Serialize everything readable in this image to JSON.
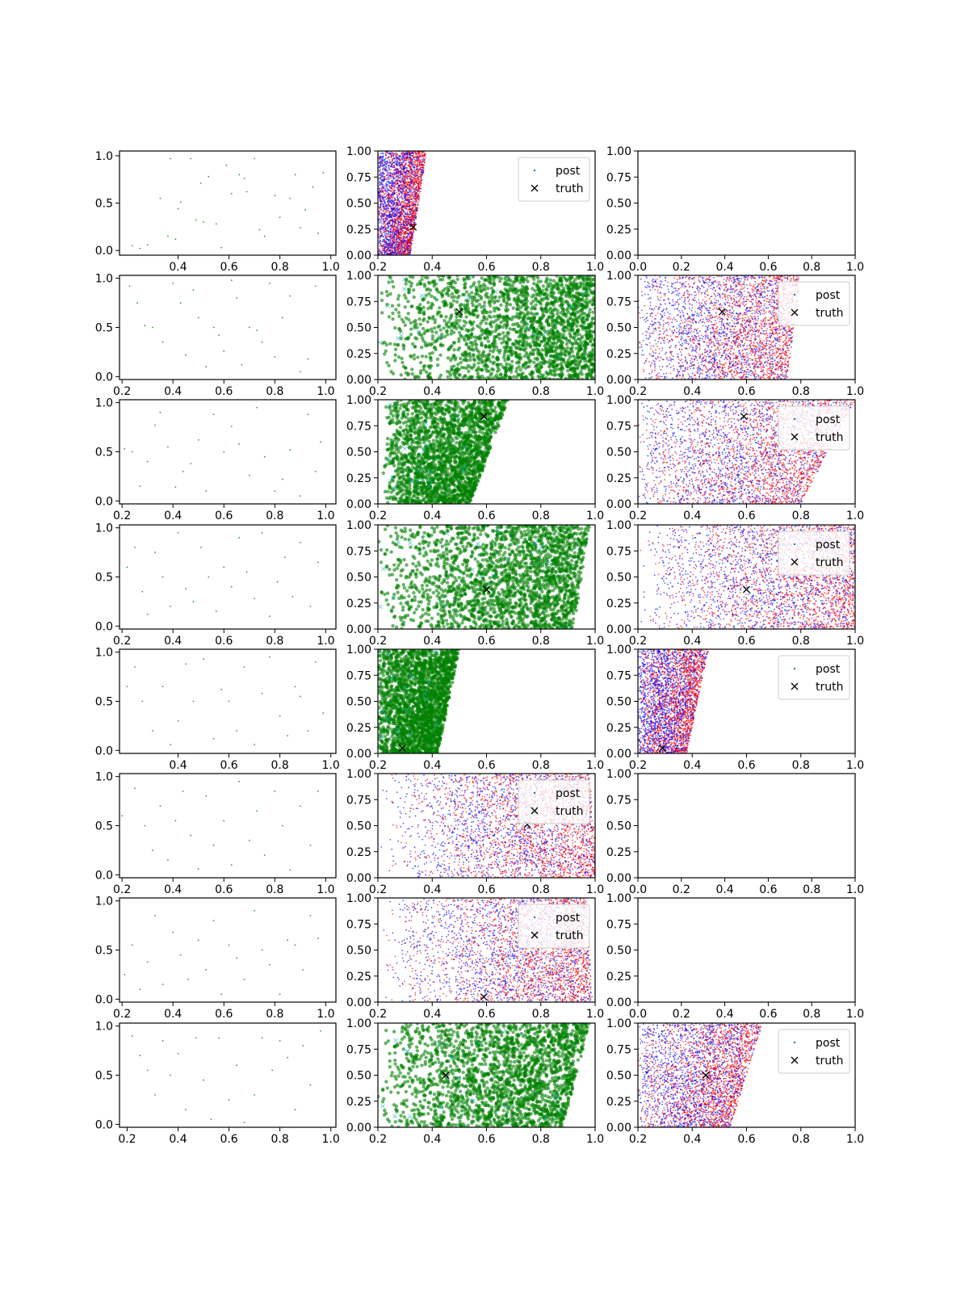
{
  "figure": {
    "layout": "8 rows x 3 columns of scatter subplots",
    "colors": {
      "prior": "#2ca02c",
      "samples": "#008000",
      "post_a": "#ff0000",
      "post_b": "#0000ff",
      "truth": "#000000",
      "post_legend": "#1f77b4"
    },
    "legend_labels": {
      "post": "post",
      "truth": "truth"
    }
  },
  "chart_data": [
    {
      "row": 1,
      "col": 1,
      "type": "scatter",
      "kind": "prior",
      "xlim": [
        0.17,
        1.02
      ],
      "ylim": [
        -0.05,
        1.05
      ],
      "xticks": [
        "0.4",
        "0.6",
        "0.8",
        "1.0"
      ],
      "yticks": [
        "0.0",
        "0.5",
        "1.0"
      ],
      "legend": false,
      "x": [
        0.22,
        0.25,
        0.28,
        0.33,
        0.36,
        0.37,
        0.39,
        0.4,
        0.41,
        0.45,
        0.47,
        0.49,
        0.5,
        0.52,
        0.55,
        0.57,
        0.59,
        0.61,
        0.64,
        0.66,
        0.67,
        0.7,
        0.72,
        0.74,
        0.78,
        0.8,
        0.84,
        0.86,
        0.88,
        0.9,
        0.93,
        0.95,
        0.97
      ],
      "y": [
        0.05,
        0.02,
        0.06,
        0.55,
        0.15,
        0.97,
        0.12,
        0.44,
        0.51,
        0.97,
        0.32,
        0.71,
        0.3,
        0.78,
        0.28,
        0.03,
        0.9,
        0.6,
        0.8,
        0.76,
        0.62,
        0.97,
        0.22,
        0.15,
        0.58,
        0.35,
        0.55,
        0.8,
        0.24,
        0.43,
        0.67,
        0.18,
        0.82
      ]
    },
    {
      "row": 1,
      "col": 2,
      "type": "scatter",
      "kind": "posterior",
      "xlim": [
        0.2,
        1.0
      ],
      "ylim": [
        0.0,
        1.0
      ],
      "xticks": [
        "0.2",
        "0.4",
        "0.6",
        "0.8",
        "1.0"
      ],
      "yticks": [
        "0.00",
        "0.25",
        "0.50",
        "0.75",
        "1.00"
      ],
      "legend": true,
      "truth": [
        0.33,
        0.27
      ],
      "region": {
        "x0": 0.2,
        "w0": 0.12,
        "w1": 0.18,
        "bias": 0.35
      }
    },
    {
      "row": 1,
      "col": 3,
      "type": "scatter",
      "kind": "empty",
      "xlim": [
        0.0,
        1.0
      ],
      "ylim": [
        0.0,
        1.0
      ],
      "xticks": [
        "0.0",
        "0.2",
        "0.4",
        "0.6",
        "0.8",
        "1.0"
      ],
      "yticks": [
        "0.00",
        "0.25",
        "0.50",
        "0.75",
        "1.00"
      ],
      "legend": false
    },
    {
      "row": 2,
      "col": 1,
      "type": "scatter",
      "kind": "prior",
      "xlim": [
        0.19,
        1.04
      ],
      "ylim": [
        -0.03,
        1.03
      ],
      "xticks": [
        "0.2",
        "0.4",
        "0.6",
        "0.8",
        "1.0"
      ],
      "yticks": [
        "0.0",
        "0.5",
        "1.0"
      ],
      "legend": false,
      "x": [
        0.23,
        0.26,
        0.29,
        0.32,
        0.36,
        0.4,
        0.43,
        0.45,
        0.48,
        0.5,
        0.53,
        0.56,
        0.58,
        0.6,
        0.63,
        0.65,
        0.67,
        0.7,
        0.73,
        0.75,
        0.78,
        0.8,
        0.83,
        0.86,
        0.9,
        0.93,
        0.96
      ],
      "y": [
        0.92,
        0.75,
        0.52,
        0.5,
        0.35,
        0.95,
        0.75,
        0.22,
        0.88,
        0.6,
        0.1,
        0.5,
        0.42,
        0.26,
        0.98,
        0.8,
        0.12,
        0.5,
        0.47,
        0.35,
        0.95,
        0.2,
        0.6,
        0.82,
        0.05,
        0.18,
        0.92
      ]
    },
    {
      "row": 2,
      "col": 2,
      "type": "scatter",
      "kind": "samples",
      "xlim": [
        0.2,
        1.0
      ],
      "ylim": [
        0.0,
        1.0
      ],
      "xticks": [
        "0.2",
        "0.4",
        "0.6",
        "0.8",
        "1.0"
      ],
      "yticks": [
        "0.00",
        "0.25",
        "0.50",
        "0.75",
        "1.00"
      ],
      "legend": false,
      "truth": [
        0.5,
        0.65
      ],
      "region": {
        "x0": 0.2,
        "x1": 1.0,
        "bias": 0.75
      }
    },
    {
      "row": 2,
      "col": 3,
      "type": "scatter",
      "kind": "posterior",
      "xlim": [
        0.2,
        1.0
      ],
      "ylim": [
        0.0,
        1.0
      ],
      "xticks": [
        "0.2",
        "0.4",
        "0.6",
        "0.8",
        "1.0"
      ],
      "yticks": [
        "0.00",
        "0.25",
        "0.50",
        "0.75",
        "1.00"
      ],
      "legend": true,
      "truth": [
        0.51,
        0.65
      ],
      "region": {
        "x0": 0.2,
        "w0": 0.55,
        "w1": 0.6,
        "bias": 0.6
      }
    },
    {
      "row": 3,
      "col": 1,
      "type": "scatter",
      "kind": "prior",
      "xlim": [
        0.19,
        1.04
      ],
      "ylim": [
        -0.03,
        1.03
      ],
      "xticks": [
        "0.2",
        "0.4",
        "0.6",
        "0.8",
        "1.0"
      ],
      "yticks": [
        "0.0",
        "0.5",
        "1.0"
      ],
      "legend": false,
      "x": [
        0.21,
        0.24,
        0.27,
        0.3,
        0.33,
        0.35,
        0.38,
        0.41,
        0.44,
        0.47,
        0.5,
        0.53,
        0.56,
        0.6,
        0.63,
        0.66,
        0.7,
        0.73,
        0.76,
        0.8,
        0.83,
        0.86,
        0.9,
        0.93,
        0.96,
        0.98
      ],
      "y": [
        0.53,
        0.5,
        0.15,
        0.4,
        0.77,
        0.9,
        0.55,
        0.14,
        0.3,
        0.38,
        0.62,
        0.1,
        0.88,
        0.5,
        0.76,
        0.58,
        0.26,
        0.95,
        0.45,
        0.1,
        0.22,
        0.52,
        0.05,
        0.88,
        0.3,
        0.6
      ]
    },
    {
      "row": 3,
      "col": 2,
      "type": "scatter",
      "kind": "samples",
      "xlim": [
        0.2,
        1.0
      ],
      "ylim": [
        0.0,
        1.0
      ],
      "xticks": [
        "0.2",
        "0.4",
        "0.6",
        "0.8",
        "1.0"
      ],
      "yticks": [
        "0.00",
        "0.25",
        "0.50",
        "0.75",
        "1.00"
      ],
      "legend": false,
      "truth": [
        0.59,
        0.84
      ],
      "region": {
        "x0": 0.22,
        "w0": 0.32,
        "w1": 0.46,
        "bias": 0.55
      }
    },
    {
      "row": 3,
      "col": 3,
      "type": "scatter",
      "kind": "posterior",
      "xlim": [
        0.2,
        1.0
      ],
      "ylim": [
        0.0,
        1.0
      ],
      "xticks": [
        "0.2",
        "0.4",
        "0.6",
        "0.8",
        "1.0"
      ],
      "yticks": [
        "0.00",
        "0.25",
        "0.50",
        "0.75",
        "1.00"
      ],
      "legend": true,
      "truth": [
        0.59,
        0.84
      ],
      "region": {
        "x0": 0.2,
        "w0": 0.6,
        "w1": 0.8,
        "bias": 0.6
      }
    },
    {
      "row": 4,
      "col": 1,
      "type": "scatter",
      "kind": "prior",
      "xlim": [
        0.19,
        1.04
      ],
      "ylim": [
        -0.03,
        1.03
      ],
      "xticks": [
        "0.2",
        "0.4",
        "0.6",
        "0.8",
        "1.0"
      ],
      "yticks": [
        "0.0",
        "0.5",
        "1.0"
      ],
      "legend": false,
      "x": [
        0.22,
        0.25,
        0.28,
        0.3,
        0.33,
        0.36,
        0.39,
        0.42,
        0.45,
        0.48,
        0.51,
        0.54,
        0.57,
        0.6,
        0.63,
        0.66,
        0.69,
        0.72,
        0.75,
        0.78,
        0.81,
        0.84,
        0.87,
        0.9,
        0.94,
        0.97
      ],
      "y": [
        0.6,
        0.8,
        0.35,
        0.12,
        0.75,
        0.5,
        0.2,
        0.95,
        0.38,
        0.25,
        0.8,
        0.5,
        0.15,
        0.6,
        0.4,
        0.9,
        0.55,
        0.28,
        0.95,
        0.1,
        0.45,
        0.7,
        0.3,
        0.85,
        0.2,
        0.65
      ]
    },
    {
      "row": 4,
      "col": 2,
      "type": "scatter",
      "kind": "samples",
      "xlim": [
        0.2,
        1.0
      ],
      "ylim": [
        0.0,
        1.0
      ],
      "xticks": [
        "0.2",
        "0.4",
        "0.6",
        "0.8",
        "1.0"
      ],
      "yticks": [
        "0.00",
        "0.25",
        "0.50",
        "0.75",
        "1.00"
      ],
      "legend": false,
      "truth": [
        0.6,
        0.38
      ],
      "region": {
        "x0": 0.2,
        "w0": 0.72,
        "w1": 0.78,
        "bias": 0.7
      }
    },
    {
      "row": 4,
      "col": 3,
      "type": "scatter",
      "kind": "posterior",
      "xlim": [
        0.2,
        1.0
      ],
      "ylim": [
        0.0,
        1.0
      ],
      "xticks": [
        "0.2",
        "0.4",
        "0.6",
        "0.8",
        "1.0"
      ],
      "yticks": [
        "0.00",
        "0.25",
        "0.50",
        "0.75",
        "1.00"
      ],
      "legend": true,
      "truth": [
        0.6,
        0.38
      ],
      "region": {
        "x0": 0.2,
        "w0": 0.8,
        "w1": 0.8,
        "bias": 0.8
      }
    },
    {
      "row": 5,
      "col": 1,
      "type": "scatter",
      "kind": "prior",
      "xlim": [
        0.17,
        1.02
      ],
      "ylim": [
        -0.03,
        1.03
      ],
      "xticks": [
        "0.4",
        "0.6",
        "0.8",
        "1.0"
      ],
      "yticks": [
        "0.0",
        "0.5",
        "1.0"
      ],
      "legend": false,
      "x": [
        0.2,
        0.23,
        0.26,
        0.3,
        0.34,
        0.37,
        0.4,
        0.43,
        0.46,
        0.5,
        0.54,
        0.57,
        0.6,
        0.63,
        0.66,
        0.7,
        0.73,
        0.76,
        0.8,
        0.83,
        0.86,
        0.88,
        0.91,
        0.94,
        0.97
      ],
      "y": [
        0.65,
        0.85,
        0.5,
        0.2,
        0.65,
        0.06,
        0.3,
        0.88,
        0.5,
        0.93,
        0.12,
        0.62,
        0.5,
        0.2,
        0.85,
        0.06,
        0.58,
        0.95,
        0.35,
        0.15,
        0.65,
        0.55,
        0.2,
        0.9,
        0.38
      ]
    },
    {
      "row": 5,
      "col": 2,
      "type": "scatter",
      "kind": "samples",
      "xlim": [
        0.2,
        1.0
      ],
      "ylim": [
        0.0,
        1.0
      ],
      "xticks": [
        "0.2",
        "0.4",
        "0.6",
        "0.8",
        "1.0"
      ],
      "yticks": [
        "0.00",
        "0.25",
        "0.50",
        "0.75",
        "1.00"
      ],
      "legend": false,
      "truth": [
        0.29,
        0.05
      ],
      "region": {
        "x0": 0.2,
        "w0": 0.22,
        "w1": 0.3,
        "bias": 0.45
      }
    },
    {
      "row": 5,
      "col": 3,
      "type": "scatter",
      "kind": "posterior",
      "xlim": [
        0.2,
        1.0
      ],
      "ylim": [
        0.0,
        1.0
      ],
      "xticks": [
        "0.2",
        "0.4",
        "0.6",
        "0.8",
        "1.0"
      ],
      "yticks": [
        "0.00",
        "0.25",
        "0.50",
        "0.75",
        "1.00"
      ],
      "legend": true,
      "truth": [
        0.29,
        0.05
      ],
      "region": {
        "x0": 0.2,
        "w0": 0.18,
        "w1": 0.26,
        "bias": 0.4
      }
    },
    {
      "row": 6,
      "col": 1,
      "type": "scatter",
      "kind": "prior",
      "xlim": [
        0.19,
        1.04
      ],
      "ylim": [
        -0.03,
        1.03
      ],
      "xticks": [
        "0.2",
        "0.4",
        "0.6",
        "0.8",
        "1.0"
      ],
      "yticks": [
        "0.0",
        "0.5",
        "1.0"
      ],
      "legend": false,
      "x": [
        0.2,
        0.25,
        0.29,
        0.32,
        0.35,
        0.38,
        0.41,
        0.44,
        0.47,
        0.5,
        0.53,
        0.56,
        0.6,
        0.63,
        0.66,
        0.7,
        0.73,
        0.76,
        0.8,
        0.83,
        0.86,
        0.9,
        0.94,
        0.97
      ],
      "y": [
        0.6,
        0.88,
        0.5,
        0.25,
        0.7,
        0.15,
        0.55,
        0.85,
        0.4,
        0.06,
        0.8,
        0.3,
        0.55,
        0.1,
        0.95,
        0.35,
        0.65,
        0.2,
        0.85,
        0.5,
        0.05,
        0.7,
        0.3,
        0.85
      ]
    },
    {
      "row": 6,
      "col": 2,
      "type": "scatter",
      "kind": "posterior",
      "xlim": [
        0.2,
        1.0
      ],
      "ylim": [
        0.0,
        1.0
      ],
      "xticks": [
        "0.2",
        "0.4",
        "0.6",
        "0.8",
        "1.0"
      ],
      "yticks": [
        "0.00",
        "0.25",
        "0.50",
        "0.75",
        "1.00"
      ],
      "legend": true,
      "truth": [
        0.75,
        0.51
      ],
      "region": {
        "x0": 0.21,
        "w0": 0.8,
        "w1": 0.77,
        "bias": 0.85
      }
    },
    {
      "row": 6,
      "col": 3,
      "type": "scatter",
      "kind": "empty",
      "xlim": [
        0.0,
        1.0
      ],
      "ylim": [
        0.0,
        1.0
      ],
      "xticks": [
        "0.0",
        "0.2",
        "0.4",
        "0.6",
        "0.8",
        "1.0"
      ],
      "yticks": [
        "0.00",
        "0.25",
        "0.50",
        "0.75",
        "1.00"
      ],
      "legend": false
    },
    {
      "row": 7,
      "col": 1,
      "type": "scatter",
      "kind": "prior",
      "xlim": [
        0.19,
        1.04
      ],
      "ylim": [
        -0.03,
        1.03
      ],
      "xticks": [
        "0.2",
        "0.4",
        "0.6",
        "0.8",
        "1.0"
      ],
      "yticks": [
        "0.0",
        "0.5",
        "1.0"
      ],
      "legend": false,
      "x": [
        0.21,
        0.24,
        0.27,
        0.3,
        0.33,
        0.36,
        0.4,
        0.43,
        0.46,
        0.5,
        0.53,
        0.56,
        0.59,
        0.62,
        0.65,
        0.68,
        0.72,
        0.75,
        0.78,
        0.82,
        0.85,
        0.88,
        0.91,
        0.94,
        0.97
      ],
      "y": [
        0.25,
        0.55,
        0.1,
        0.38,
        0.85,
        0.15,
        0.68,
        0.45,
        0.2,
        0.6,
        0.3,
        0.8,
        0.05,
        0.55,
        0.42,
        0.2,
        0.9,
        0.5,
        0.35,
        0.05,
        0.6,
        0.55,
        0.3,
        0.85,
        0.62
      ]
    },
    {
      "row": 7,
      "col": 2,
      "type": "scatter",
      "kind": "posterior",
      "xlim": [
        0.2,
        1.0
      ],
      "ylim": [
        0.0,
        1.0
      ],
      "xticks": [
        "0.2",
        "0.4",
        "0.6",
        "0.8",
        "1.0"
      ],
      "yticks": [
        "0.00",
        "0.25",
        "0.50",
        "0.75",
        "1.00"
      ],
      "legend": true,
      "truth": [
        0.59,
        0.05
      ],
      "region": {
        "x0": 0.21,
        "w0": 0.78,
        "w1": 0.76,
        "bias": 0.85
      }
    },
    {
      "row": 7,
      "col": 3,
      "type": "scatter",
      "kind": "empty",
      "xlim": [
        0.0,
        1.0
      ],
      "ylim": [
        0.0,
        1.0
      ],
      "xticks": [
        "0.0",
        "0.2",
        "0.4",
        "0.6",
        "0.8",
        "1.0"
      ],
      "yticks": [
        "0.00",
        "0.25",
        "0.50",
        "0.75",
        "1.00"
      ],
      "legend": false
    },
    {
      "row": 8,
      "col": 1,
      "type": "scatter",
      "kind": "prior",
      "xlim": [
        0.17,
        1.02
      ],
      "ylim": [
        -0.03,
        1.03
      ],
      "xticks": [
        "0.2",
        "0.4",
        "0.6",
        "0.8",
        "1.0"
      ],
      "yticks": [
        "0.0",
        "0.5",
        "1.0"
      ],
      "legend": false,
      "x": [
        0.22,
        0.25,
        0.28,
        0.31,
        0.34,
        0.37,
        0.4,
        0.43,
        0.47,
        0.5,
        0.53,
        0.56,
        0.6,
        0.63,
        0.66,
        0.7,
        0.73,
        0.77,
        0.8,
        0.83,
        0.86,
        0.89,
        0.92,
        0.96
      ],
      "y": [
        0.9,
        0.7,
        0.55,
        0.3,
        0.85,
        0.5,
        0.72,
        0.15,
        0.88,
        0.45,
        0.05,
        0.88,
        0.25,
        0.6,
        0.02,
        0.3,
        0.88,
        0.55,
        0.85,
        0.68,
        0.15,
        0.8,
        0.4,
        0.95
      ]
    },
    {
      "row": 8,
      "col": 2,
      "type": "scatter",
      "kind": "samples",
      "xlim": [
        0.2,
        1.0
      ],
      "ylim": [
        0.0,
        1.0
      ],
      "xticks": [
        "0.2",
        "0.4",
        "0.6",
        "0.8",
        "1.0"
      ],
      "yticks": [
        "0.00",
        "0.25",
        "0.50",
        "0.75",
        "1.00"
      ],
      "legend": false,
      "truth": [
        0.45,
        0.5
      ],
      "region": {
        "x0": 0.2,
        "w0": 0.68,
        "w1": 0.78,
        "bias": 0.7
      }
    },
    {
      "row": 8,
      "col": 3,
      "type": "scatter",
      "kind": "posterior",
      "xlim": [
        0.2,
        1.0
      ],
      "ylim": [
        0.0,
        1.0
      ],
      "xticks": [
        "0.2",
        "0.4",
        "0.6",
        "0.8",
        "1.0"
      ],
      "yticks": [
        "0.00",
        "0.25",
        "0.50",
        "0.75",
        "1.00"
      ],
      "legend": true,
      "truth": [
        0.45,
        0.5
      ],
      "region": {
        "x0": 0.2,
        "w0": 0.34,
        "w1": 0.46,
        "bias": 0.55
      }
    }
  ]
}
